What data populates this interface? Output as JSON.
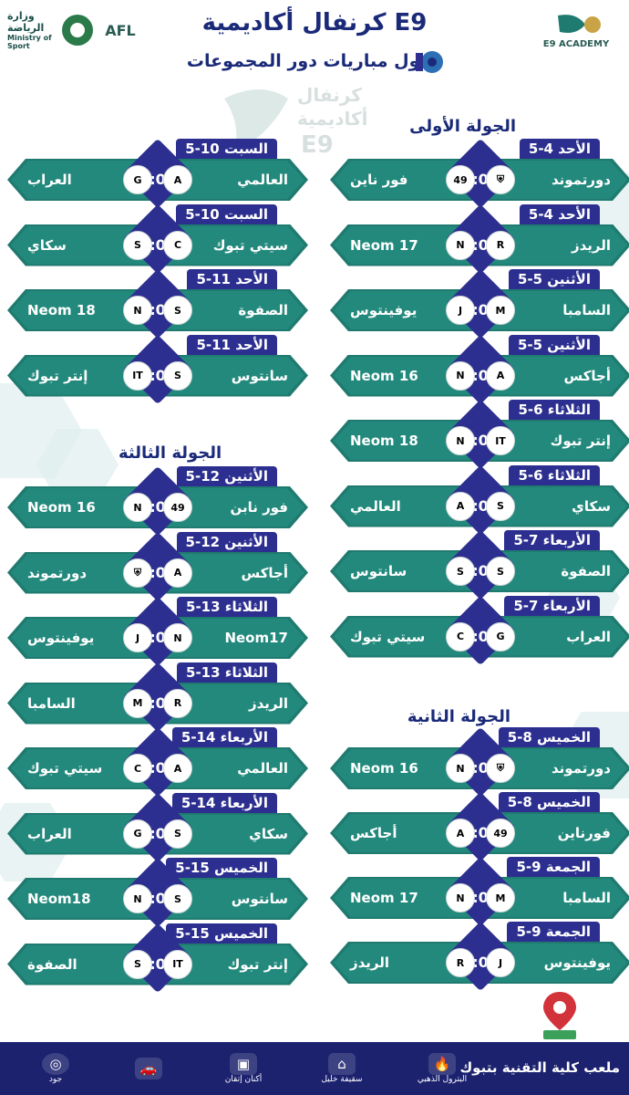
{
  "header": {
    "title": "كرنفال أكاديمية E9",
    "subtitle": "جدول مباريات دور المجموعات",
    "logo_left_1": "وزارة الرياضة",
    "logo_left_1b": "Ministry of Sport",
    "logo_left_2": "AFL",
    "logo_right": "E9 ACADEMY",
    "watermark_1": "كرنفال",
    "watermark_2": "أكاديمية",
    "watermark_3": "E9"
  },
  "rounds": {
    "r1": "الجولة الأولى",
    "r2": "الجولة الثانية",
    "r3": "الجولة الثالثة"
  },
  "matches": [
    {
      "date": "الأحد 4-5",
      "home": "دورتموند",
      "away": "فور ناين",
      "time": "6:00",
      "home_badge": "shield",
      "away_badge": "49"
    },
    {
      "date": "الأحد 4-5",
      "home": "الريدز",
      "away": "Neom 17",
      "time": "8:00",
      "home_badge": "R",
      "away_badge": "N"
    },
    {
      "date": "الأثنين 5-5",
      "home": "السامبا",
      "away": "يوفينتوس",
      "time": "6:00",
      "home_badge": "M",
      "away_badge": "J"
    },
    {
      "date": "الأثنين 5-5",
      "home": "أجاكس",
      "away": "Neom 16",
      "time": "8:00",
      "home_badge": "A",
      "away_badge": "N"
    },
    {
      "date": "الثلاثاء 6-5",
      "home": "إنتر تبوك",
      "away": "Neom 18",
      "time": "6:00",
      "home_badge": "IT",
      "away_badge": "N"
    },
    {
      "date": "الثلاثاء 6-5",
      "home": "سكاي",
      "away": "العالمي",
      "time": "8:00",
      "home_badge": "S",
      "away_badge": "A"
    },
    {
      "date": "الأربعاء 7-5",
      "home": "الصفوة",
      "away": "سانتوس",
      "time": "6:00",
      "home_badge": "S",
      "away_badge": "S"
    },
    {
      "date": "الأربعاء 7-5",
      "home": "العراب",
      "away": "سيتي تبوك",
      "time": "8:00",
      "home_badge": "G",
      "away_badge": "C"
    },
    {
      "date": "الخميس 8-5",
      "home": "دورتموند",
      "away": "Neom 16",
      "time": "6:00",
      "home_badge": "shield",
      "away_badge": "N"
    },
    {
      "date": "الخميس 8-5",
      "home": "فورناين",
      "away": "أجاكس",
      "time": "8:00",
      "home_badge": "49",
      "away_badge": "A"
    },
    {
      "date": "الجمعة 9-5",
      "home": "السامبا",
      "away": "Neom 17",
      "time": "6:00",
      "home_badge": "M",
      "away_badge": "N"
    },
    {
      "date": "الجمعة 9-5",
      "home": "يوفينتوس",
      "away": "الريدز",
      "time": "8:00",
      "home_badge": "J",
      "away_badge": "R"
    },
    {
      "date": "السبت 10-5",
      "home": "العالمي",
      "away": "العراب",
      "time": "6:00",
      "home_badge": "A",
      "away_badge": "G"
    },
    {
      "date": "السبت 10-5",
      "home": "سيتي تبوك",
      "away": "سكاي",
      "time": "8:00",
      "home_badge": "C",
      "away_badge": "S"
    },
    {
      "date": "الأحد 11-5",
      "home": "الصفوة",
      "away": "Neom 18",
      "time": "6:00",
      "home_badge": "S",
      "away_badge": "N"
    },
    {
      "date": "الأحد 11-5",
      "home": "سانتوس",
      "away": "إنتر تبوك",
      "time": "8:00",
      "home_badge": "S",
      "away_badge": "IT"
    },
    {
      "date": "الأثنين 12-5",
      "home": "فور نابن",
      "away": "Neom 16",
      "time": "6:00",
      "home_badge": "49",
      "away_badge": "N"
    },
    {
      "date": "الأثنين 12-5",
      "home": "أجاكس",
      "away": "دورتموند",
      "time": "8:00",
      "home_badge": "A",
      "away_badge": "shield"
    },
    {
      "date": "الثلاثاء 13-5",
      "home": "Neom17",
      "away": "يوفينتوس",
      "time": "6:00",
      "home_badge": "N",
      "away_badge": "J"
    },
    {
      "date": "الثلاثاء 13-5",
      "home": "الريدز",
      "away": "السامبا",
      "time": "8:00",
      "home_badge": "R",
      "away_badge": "M"
    },
    {
      "date": "الأربعاء 14-5",
      "home": "العالمي",
      "away": "سيتي تبوك",
      "time": "6:00",
      "home_badge": "A",
      "away_badge": "C"
    },
    {
      "date": "الأربعاء 14-5",
      "home": "سكاي",
      "away": "العراب",
      "time": "8:00",
      "home_badge": "S",
      "away_badge": "G"
    },
    {
      "date": "الخميس 15-5",
      "home": "سانتوس",
      "away": "Neom18",
      "time": "6:00",
      "home_badge": "S",
      "away_badge": "N"
    },
    {
      "date": "الخميس 15-5",
      "home": "إنتر تبوك",
      "away": "الصفوة",
      "time": "8:00",
      "home_badge": "IT",
      "away_badge": "S"
    }
  ],
  "footer": {
    "venue": "ملعب كلية التقنية بتبوك",
    "sponsors": [
      "البترول الذهبي",
      "سقيفة خليل",
      "أكنان إتقان",
      "",
      "جود"
    ]
  },
  "colors": {
    "bar": "#23897c",
    "accent": "#2c2f8f",
    "title": "#1a2a78",
    "footer": "#1c226e"
  }
}
